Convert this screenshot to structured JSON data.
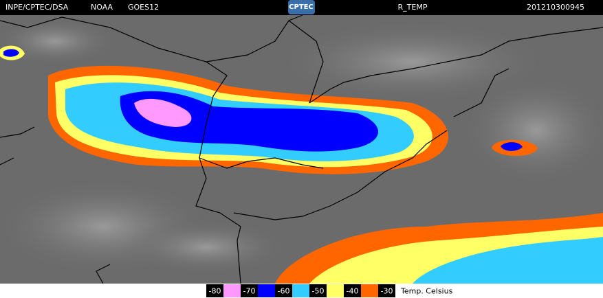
{
  "header": {
    "source": "INPE/CPTEC/DSA",
    "agency": "NOAA",
    "satellite": "GOES12",
    "logo": "CPTEC",
    "product": "R_TEMP",
    "timestamp": "201210300945"
  },
  "legend": {
    "values": [
      -80,
      -70,
      -60,
      -50,
      -40,
      -30
    ],
    "colors": [
      "#ff99ff",
      "#0000ff",
      "#33ccff",
      "#ffff66",
      "#ff6600"
    ],
    "unit": "Temp. Celsius"
  }
}
